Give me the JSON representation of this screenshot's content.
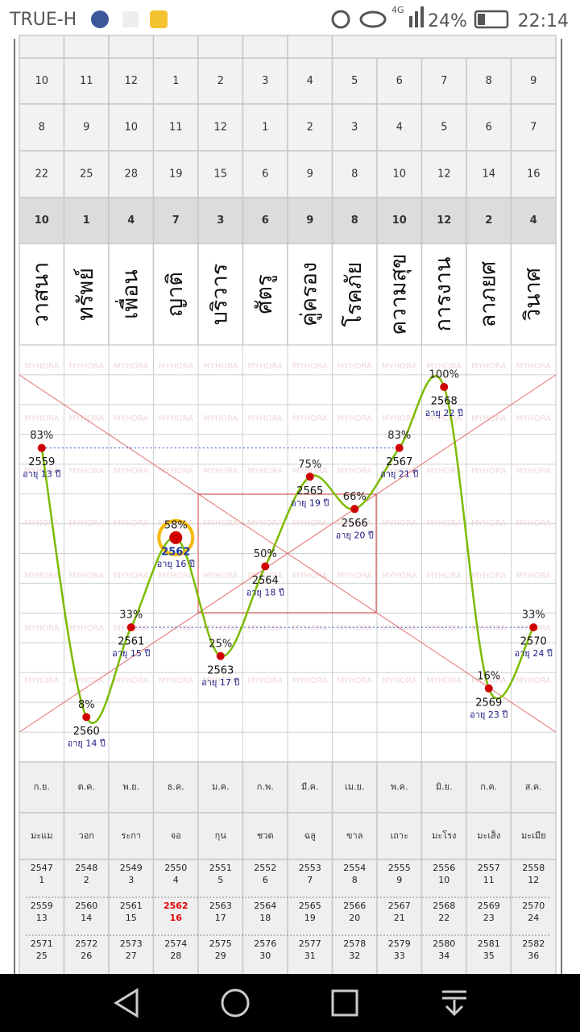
{
  "status_bar": {
    "carrier": "TRUE-H",
    "network": "4G",
    "battery": "24%",
    "time": "22:14"
  },
  "table": {
    "rows": [
      [
        "10",
        "11",
        "12",
        "1",
        "2",
        "3",
        "4",
        "5",
        "6",
        "7",
        "8",
        "9"
      ],
      [
        "8",
        "9",
        "10",
        "11",
        "12",
        "1",
        "2",
        "3",
        "4",
        "5",
        "6",
        "7"
      ],
      [
        "22",
        "25",
        "28",
        "19",
        "15",
        "6",
        "9",
        "8",
        "10",
        "12",
        "14",
        "16"
      ],
      [
        "10",
        "1",
        "4",
        "7",
        "3",
        "6",
        "9",
        "8",
        "10",
        "12",
        "2",
        "4"
      ]
    ],
    "houses": [
      "วาสนา",
      "ทรัพย์",
      "เพื่อน",
      "ญาติ",
      "บริวาร",
      "ศัตรู",
      "คู่ครอง",
      "โรคภัย",
      "ความสุข",
      "การงาน",
      "ลาภยศ",
      "วินาศ"
    ],
    "months": [
      "ก.ย.",
      "ต.ค.",
      "พ.ย.",
      "ธ.ค.",
      "ม.ค.",
      "ก.พ.",
      "มี.ค.",
      "เม.ย.",
      "พ.ค.",
      "มิ.ย.",
      "ก.ค.",
      "ส.ค."
    ],
    "zodiac": [
      "มะแม",
      "วอก",
      "ระกา",
      "จอ",
      "กุน",
      "ชวด",
      "ฉลู",
      "ขาล",
      "เถาะ",
      "มะโรง",
      "มะเส็ง",
      "มะเมีย"
    ],
    "years": [
      [
        [
          "2547",
          "1"
        ],
        [
          "2548",
          "2"
        ],
        [
          "2549",
          "3"
        ],
        [
          "2550",
          "4"
        ],
        [
          "2551",
          "5"
        ],
        [
          "2552",
          "6"
        ],
        [
          "2553",
          "7"
        ],
        [
          "2554",
          "8"
        ],
        [
          "2555",
          "9"
        ],
        [
          "2556",
          "10"
        ],
        [
          "2557",
          "11"
        ],
        [
          "2558",
          "12"
        ]
      ],
      [
        [
          "2559",
          "13"
        ],
        [
          "2560",
          "14"
        ],
        [
          "2561",
          "15"
        ],
        [
          "2562",
          "16"
        ],
        [
          "2563",
          "17"
        ],
        [
          "2564",
          "18"
        ],
        [
          "2565",
          "19"
        ],
        [
          "2566",
          "20"
        ],
        [
          "2567",
          "21"
        ],
        [
          "2568",
          "22"
        ],
        [
          "2569",
          "23"
        ],
        [
          "2570",
          "24"
        ]
      ],
      [
        [
          "2571",
          "25"
        ],
        [
          "2572",
          "26"
        ],
        [
          "2573",
          "27"
        ],
        [
          "2574",
          "28"
        ],
        [
          "2575",
          "29"
        ],
        [
          "2576",
          "30"
        ],
        [
          "2577",
          "31"
        ],
        [
          "2578",
          "32"
        ],
        [
          "2579",
          "33"
        ],
        [
          "2580",
          "34"
        ],
        [
          "2581",
          "35"
        ],
        [
          "2582",
          "36"
        ]
      ]
    ]
  },
  "chart_data": {
    "type": "line",
    "categories": [
      "2559",
      "2560",
      "2561",
      "2562",
      "2563",
      "2564",
      "2565",
      "2566",
      "2567",
      "2568",
      "2569",
      "2570"
    ],
    "values": [
      83,
      8,
      33,
      58,
      25,
      50,
      75,
      66,
      83,
      100,
      16,
      33
    ],
    "value_labels": [
      "83%",
      "8%",
      "33%",
      "58%",
      "25%",
      "50%",
      "75%",
      "66%",
      "83%",
      "100%",
      "16%",
      "33%"
    ],
    "age_labels": [
      "อายุ 13 ปี",
      "อายุ 14 ปี",
      "อายุ 15 ปี",
      "อายุ 16 ปี",
      "อายุ 17 ปี",
      "อายุ 18 ปี",
      "อายุ 19 ปี",
      "อายุ 20 ปี",
      "อายุ 21 ปี",
      "อายุ 22 ปี",
      "อายุ 23 ปี",
      "อายุ 24 ปี"
    ],
    "ylim": [
      0,
      100
    ],
    "color": "#7cbb00",
    "highlight_index": 3,
    "watermark": "MYHORA"
  }
}
